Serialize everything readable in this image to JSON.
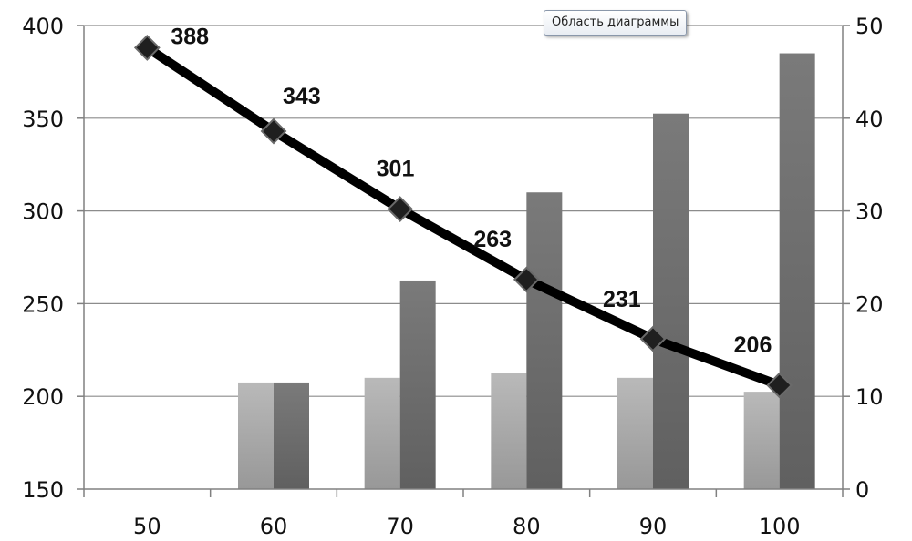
{
  "tooltip": "Область диаграммы",
  "chart_data": {
    "type": "bar",
    "categories": [
      "50",
      "60",
      "70",
      "80",
      "90",
      "100"
    ],
    "y_left": {
      "ticks": [
        150,
        200,
        250,
        300,
        350,
        400
      ],
      "ylim": [
        150,
        400
      ]
    },
    "y_right": {
      "ticks": [
        0,
        10,
        20,
        30,
        40,
        50
      ],
      "ylim": [
        0,
        50
      ]
    },
    "grid": true,
    "series": [
      {
        "type": "bar",
        "axis": "right",
        "color": "#a6a6a6",
        "values": [
          null,
          11.5,
          12,
          12.5,
          12,
          10.5
        ]
      },
      {
        "type": "bar",
        "axis": "right",
        "color": "#6e6e6e",
        "values": [
          null,
          11.5,
          22.5,
          32,
          40.5,
          47
        ]
      },
      {
        "type": "line",
        "axis": "left",
        "color": "#000000",
        "marker": "diamond",
        "values": [
          388,
          343,
          301,
          263,
          231,
          206
        ],
        "labels": [
          "388",
          "343",
          "301",
          "263",
          "231",
          "206"
        ]
      }
    ]
  }
}
